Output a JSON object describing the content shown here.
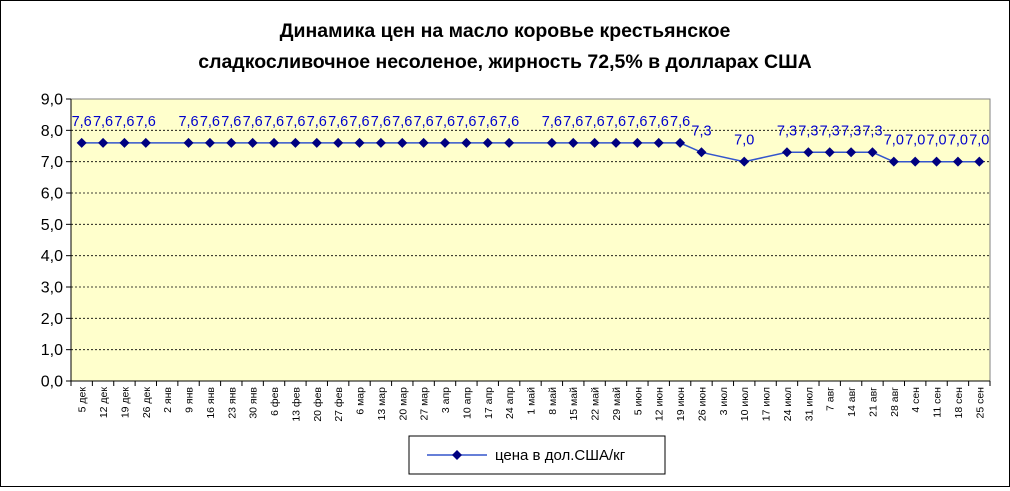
{
  "chart_data": {
    "type": "line",
    "title": [
      "Динамика цен на масло коровье крестьянское",
      "сладкосливочное несоленое, жирность  72,5%  в долларах США"
    ],
    "xlabel": "",
    "ylabel": "",
    "ylim": [
      0,
      9
    ],
    "y_ticks": [
      "0,0",
      "1,0",
      "2,0",
      "3,0",
      "4,0",
      "5,0",
      "6,0",
      "7,0",
      "8,0",
      "9,0"
    ],
    "grid": true,
    "legend_position": "bottom",
    "categories": [
      "5 дек",
      "12 дек",
      "19 дек",
      "26 дек",
      "2 янв",
      "9 янв",
      "16 янв",
      "23 янв",
      "30 янв",
      "6 фев",
      "13 фев",
      "20 фев",
      "27 фев",
      "6 мар",
      "13 мар",
      "20 мар",
      "27 мар",
      "3 апр",
      "10 апр",
      "17 апр",
      "24 апр",
      "1 май",
      "8 май",
      "15 май",
      "22 май",
      "29 май",
      "5 июн",
      "12 июн",
      "19 июн",
      "26 июн",
      "3 июл",
      "10 июл",
      "17 июл",
      "24 июл",
      "31 июл",
      "7 авг",
      "14 авг",
      "21 авг",
      "28 авг",
      "4 сен",
      "11 сен",
      "18 сен",
      "25 сен"
    ],
    "series": [
      {
        "name": "цена в дол.США/кг",
        "color": "#000080",
        "line_color": "#3355cc",
        "values": [
          7.6,
          7.6,
          7.6,
          7.6,
          null,
          7.6,
          7.6,
          7.6,
          7.6,
          7.6,
          7.6,
          7.6,
          7.6,
          7.6,
          7.6,
          7.6,
          7.6,
          7.6,
          7.6,
          7.6,
          7.6,
          null,
          7.6,
          7.6,
          7.6,
          7.6,
          7.6,
          7.6,
          7.6,
          7.3,
          null,
          7.0,
          null,
          7.3,
          7.3,
          7.3,
          7.3,
          7.3,
          7.0,
          7.0,
          7.0,
          7.0,
          7.0
        ],
        "labels": [
          "7,6",
          "7,6",
          "7,6",
          "7,6",
          null,
          "7,6",
          "7,6",
          "7,6",
          "7,6",
          "7,6",
          "7,6",
          "7,6",
          "7,6",
          "7,6",
          "7,6",
          "7,6",
          "7,6",
          "7,6",
          "7,6",
          "7,6",
          "7,6",
          null,
          "7,6",
          "7,6",
          "7,6",
          "7,6",
          "7,6",
          "7,6",
          "7,6",
          "7,3",
          null,
          "7,0",
          null,
          "7,3",
          "7,3",
          "7,3",
          "7,3",
          "7,3",
          "7,0",
          "7,0",
          "7,0",
          "7,0",
          "7,0"
        ]
      }
    ],
    "plot_background": "#ffffcc"
  }
}
